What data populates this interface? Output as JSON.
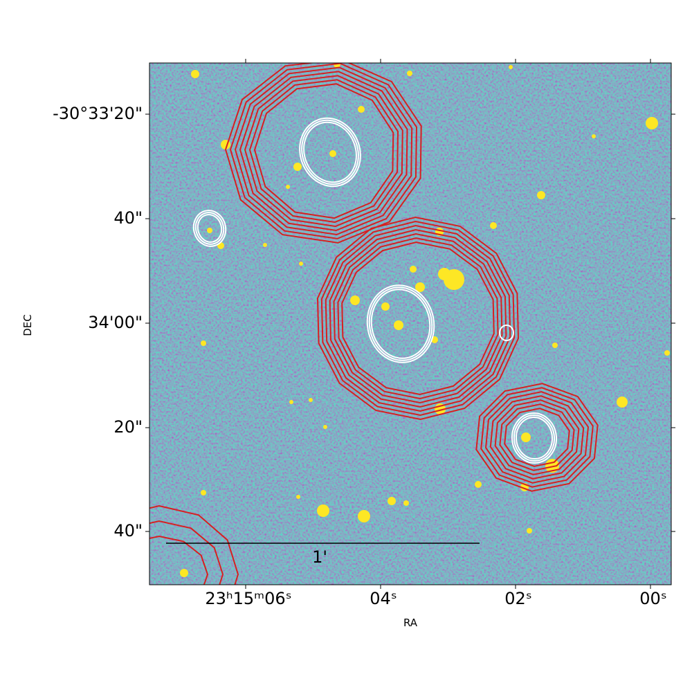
{
  "figure": {
    "x_axis": {
      "label": "RA",
      "ticks": [
        "23ʰ15ᵐ06ˢ",
        "04ˢ",
        "02ˢ",
        "00ˢ"
      ]
    },
    "y_axis": {
      "label": "DEC",
      "ticks": [
        "-30°33'20\"",
        "40\"",
        "34'00\"",
        "20\"",
        "40\""
      ]
    },
    "scale_bar": {
      "label": "1'"
    }
  }
}
